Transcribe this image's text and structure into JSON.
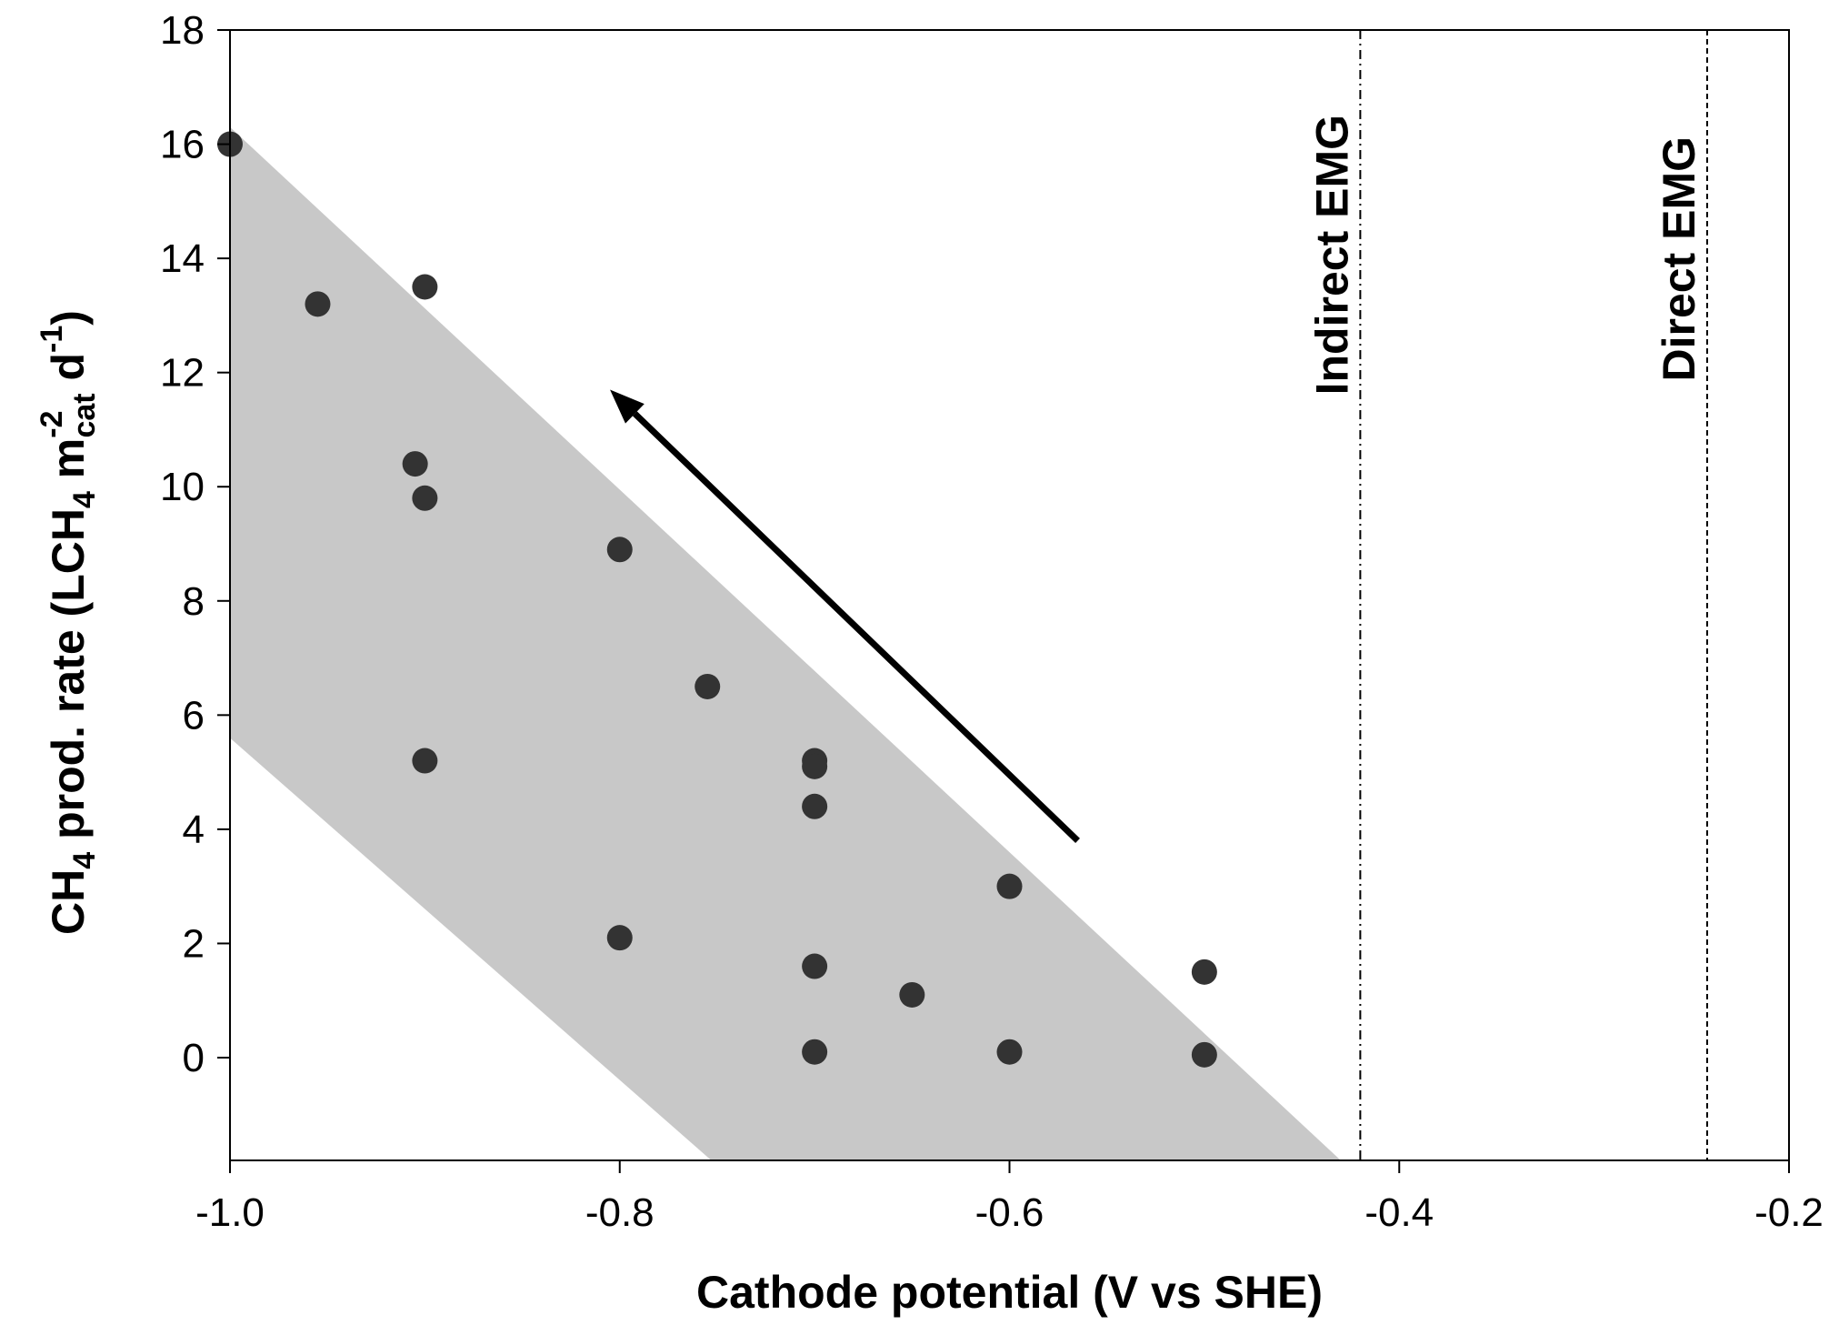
{
  "chart_data": {
    "type": "scatter",
    "title": "",
    "xlabel": "Cathode potential (V vs SHE)",
    "ylabel_parts": {
      "a": "CH",
      "a_sub": "4",
      "b": " prod. rate (LCH",
      "b_sub": "4",
      "c": " m",
      "c_sup": "-2",
      "c_sub": "cat",
      "d": " d",
      "d_sup": "-1",
      "e": ")"
    },
    "xlim": [
      -1.0,
      -0.2
    ],
    "ylim": [
      -1.8,
      18
    ],
    "xticks": [
      -1.0,
      -0.8,
      -0.6,
      -0.4,
      -0.2
    ],
    "xtick_labels": [
      "-1.0",
      "-0.8",
      "-0.6",
      "-0.4",
      "-0.2"
    ],
    "yticks": [
      0,
      2,
      4,
      6,
      8,
      10,
      12,
      14,
      16,
      18
    ],
    "ytick_labels": [
      "0",
      "2",
      "4",
      "6",
      "8",
      "10",
      "12",
      "14",
      "16",
      "18"
    ],
    "series": [
      {
        "name": "CH4 production rate",
        "color": "#333333",
        "points": [
          {
            "x": -1.0,
            "y": 16.0
          },
          {
            "x": -0.955,
            "y": 13.2
          },
          {
            "x": -0.9,
            "y": 13.5
          },
          {
            "x": -0.905,
            "y": 10.4
          },
          {
            "x": -0.9,
            "y": 9.8
          },
          {
            "x": -0.8,
            "y": 8.9
          },
          {
            "x": -0.755,
            "y": 6.5
          },
          {
            "x": -0.9,
            "y": 5.2
          },
          {
            "x": -0.7,
            "y": 5.2
          },
          {
            "x": -0.7,
            "y": 5.1
          },
          {
            "x": -0.7,
            "y": 4.4
          },
          {
            "x": -0.6,
            "y": 3.0
          },
          {
            "x": -0.8,
            "y": 2.1
          },
          {
            "x": -0.7,
            "y": 1.6
          },
          {
            "x": -0.65,
            "y": 1.1
          },
          {
            "x": -0.5,
            "y": 1.5
          },
          {
            "x": -0.7,
            "y": 0.1
          },
          {
            "x": -0.6,
            "y": 0.1
          },
          {
            "x": -0.5,
            "y": 0.05
          }
        ]
      }
    ],
    "shaded_band": {
      "color": "#c8c8c8",
      "polygon": [
        [
          -1.0,
          16.3
        ],
        [
          -0.43,
          -1.8
        ],
        [
          -0.753,
          -1.8
        ],
        [
          -1.0,
          5.6
        ]
      ]
    },
    "arrow": {
      "from": [
        -0.565,
        3.8
      ],
      "to": [
        -0.805,
        11.7
      ],
      "color": "#000000"
    },
    "vertical_lines": [
      {
        "x": -0.42,
        "label": "Indirect EMG",
        "style": "dash-dot"
      },
      {
        "x": -0.242,
        "label": "Direct EMG",
        "style": "dashed"
      }
    ]
  }
}
